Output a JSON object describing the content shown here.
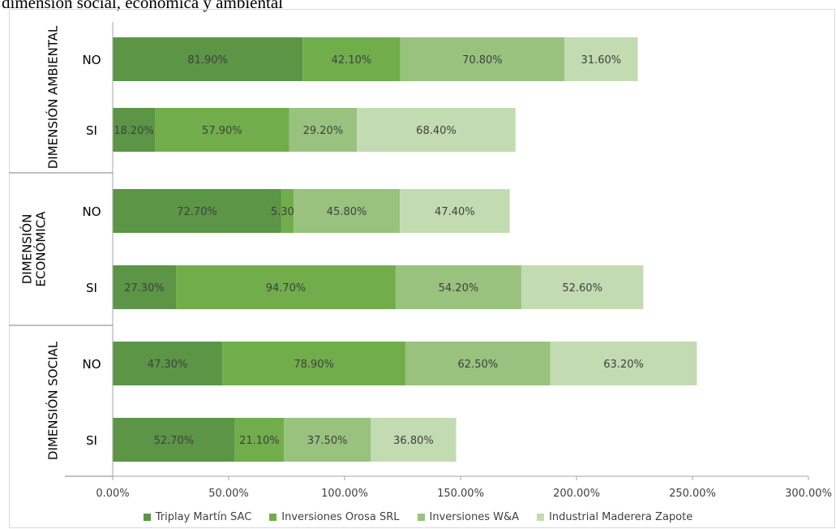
{
  "caption": "dimensión social, económica y ambiental",
  "chart_data": {
    "type": "bar",
    "orientation": "horizontal",
    "stacked": true,
    "xlim": [
      0,
      300
    ],
    "x_ticks": [
      "0.00%",
      "50.00%",
      "100.00%",
      "150.00%",
      "200.00%",
      "250.00%",
      "300.00%"
    ],
    "groups": [
      {
        "label": "DIMENSIÓN AMBIENTAL",
        "label_lines": [
          "DIMENSIÓN AMBIENTAL"
        ],
        "categories": [
          "NO",
          "SI"
        ]
      },
      {
        "label": "DIMENSIÓN ECONÓMICA",
        "label_lines": [
          "DIMENSIÓN",
          "ECONÓMICA"
        ],
        "categories": [
          "NO",
          "SI"
        ]
      },
      {
        "label": "DIMENSIÓN SOCIAL",
        "label_lines": [
          "DIMENSIÓN SOCIAL"
        ],
        "categories": [
          "NO",
          "SI"
        ]
      }
    ],
    "series": [
      {
        "name": "Triplay Martín SAC",
        "color": "#5b9545",
        "values": [
          81.9,
          18.2,
          72.7,
          27.3,
          47.3,
          52.7
        ],
        "labels": [
          "81.90%",
          "18.20%",
          "72.70%",
          "27.30%",
          "47.30%",
          "52.70%"
        ]
      },
      {
        "name": "Inversiones Orosa SRL",
        "color": "#71ad4b",
        "values": [
          42.1,
          57.9,
          5.3,
          94.7,
          78.9,
          21.1
        ],
        "labels": [
          "42.10%",
          "57.90%",
          "5.30%",
          "94.70%",
          "78.90%",
          "21.10%"
        ]
      },
      {
        "name": "Inversiones W&A",
        "color": "#98c27e",
        "values": [
          70.8,
          29.2,
          45.8,
          54.2,
          62.5,
          37.5
        ],
        "labels": [
          "70.80%",
          "29.20%",
          "45.80%",
          "54.20%",
          "62.50%",
          "37.50%"
        ]
      },
      {
        "name": "Industrial Maderera Zapote",
        "color": "#c2dbb1",
        "values": [
          31.6,
          68.4,
          47.4,
          52.6,
          63.2,
          36.8
        ],
        "labels": [
          "31.60%",
          "68.40%",
          "47.40%",
          "52.60%",
          "63.20%",
          "36.80%"
        ]
      }
    ],
    "legend_position": "bottom",
    "grid": false
  }
}
